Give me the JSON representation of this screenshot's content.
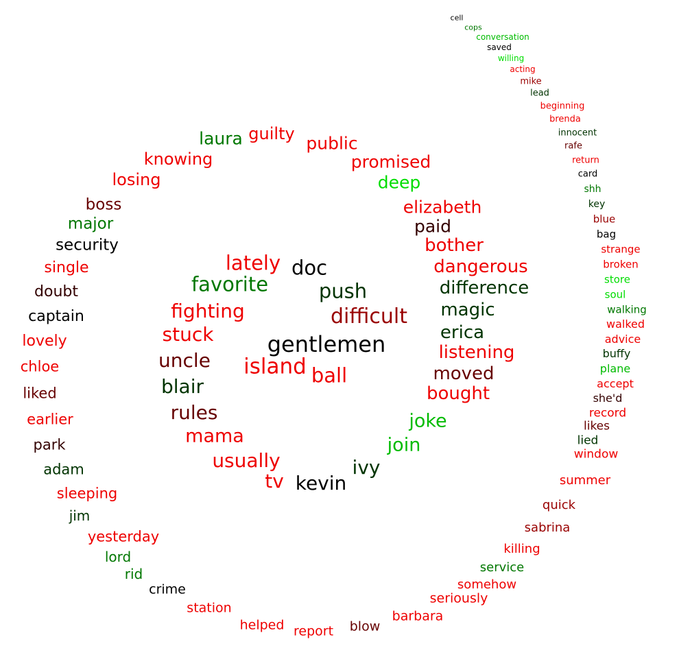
{
  "colors": {
    "black": "#000000",
    "dark_green": "#003300",
    "green": "#007700",
    "bright_green": "#00bb00",
    "lime": "#00dd00",
    "red": "#ee0000",
    "dark_red": "#990000",
    "maroon": "#660000",
    "brown": "#330000"
  },
  "words": [
    {
      "text": "gentlemen",
      "color": "black"
    },
    {
      "text": "doc",
      "color": "black"
    },
    {
      "text": "push",
      "color": "dark_green"
    },
    {
      "text": "difficult",
      "color": "dark_red"
    },
    {
      "text": "ball",
      "color": "red"
    },
    {
      "text": "island",
      "color": "red"
    },
    {
      "text": "lately",
      "color": "red"
    },
    {
      "text": "favorite",
      "color": "green"
    },
    {
      "text": "fighting",
      "color": "red"
    },
    {
      "text": "stuck",
      "color": "red"
    },
    {
      "text": "uncle",
      "color": "maroon"
    },
    {
      "text": "blair",
      "color": "dark_green"
    },
    {
      "text": "rules",
      "color": "maroon"
    },
    {
      "text": "mama",
      "color": "red"
    },
    {
      "text": "usually",
      "color": "red"
    },
    {
      "text": "tv",
      "color": "red"
    },
    {
      "text": "kevin",
      "color": "black"
    },
    {
      "text": "ivy",
      "color": "dark_green"
    },
    {
      "text": "join",
      "color": "bright_green"
    },
    {
      "text": "joke",
      "color": "bright_green"
    },
    {
      "text": "bought",
      "color": "red"
    },
    {
      "text": "moved",
      "color": "maroon"
    },
    {
      "text": "listening",
      "color": "red"
    },
    {
      "text": "erica",
      "color": "dark_green"
    },
    {
      "text": "magic",
      "color": "dark_green"
    },
    {
      "text": "difference",
      "color": "dark_green"
    },
    {
      "text": "dangerous",
      "color": "red"
    },
    {
      "text": "bother",
      "color": "red"
    },
    {
      "text": "paid",
      "color": "brown"
    },
    {
      "text": "elizabeth",
      "color": "red"
    },
    {
      "text": "deep",
      "color": "lime"
    },
    {
      "text": "promised",
      "color": "red"
    },
    {
      "text": "public",
      "color": "red"
    },
    {
      "text": "guilty",
      "color": "red"
    },
    {
      "text": "laura",
      "color": "green"
    },
    {
      "text": "knowing",
      "color": "red"
    },
    {
      "text": "losing",
      "color": "red"
    },
    {
      "text": "boss",
      "color": "maroon"
    },
    {
      "text": "major",
      "color": "green"
    },
    {
      "text": "security",
      "color": "black"
    },
    {
      "text": "single",
      "color": "red"
    },
    {
      "text": "doubt",
      "color": "brown"
    },
    {
      "text": "captain",
      "color": "black"
    },
    {
      "text": "lovely",
      "color": "red"
    },
    {
      "text": "chloe",
      "color": "red"
    },
    {
      "text": "liked",
      "color": "maroon"
    },
    {
      "text": "earlier",
      "color": "red"
    },
    {
      "text": "park",
      "color": "brown"
    },
    {
      "text": "adam",
      "color": "dark_green"
    },
    {
      "text": "sleeping",
      "color": "red"
    },
    {
      "text": "jim",
      "color": "dark_green"
    },
    {
      "text": "yesterday",
      "color": "red"
    },
    {
      "text": "lord",
      "color": "green"
    },
    {
      "text": "rid",
      "color": "green"
    },
    {
      "text": "crime",
      "color": "black"
    },
    {
      "text": "station",
      "color": "red"
    },
    {
      "text": "helped",
      "color": "red"
    },
    {
      "text": "report",
      "color": "red"
    },
    {
      "text": "blow",
      "color": "maroon"
    },
    {
      "text": "barbara",
      "color": "red"
    },
    {
      "text": "seriously",
      "color": "red"
    },
    {
      "text": "somehow",
      "color": "red"
    },
    {
      "text": "service",
      "color": "green"
    },
    {
      "text": "killing",
      "color": "red"
    },
    {
      "text": "sabrina",
      "color": "dark_red"
    },
    {
      "text": "quick",
      "color": "dark_red"
    },
    {
      "text": "summer",
      "color": "red"
    },
    {
      "text": "window",
      "color": "red"
    },
    {
      "text": "lied",
      "color": "dark_green"
    },
    {
      "text": "likes",
      "color": "maroon"
    },
    {
      "text": "record",
      "color": "red"
    },
    {
      "text": "she'd",
      "color": "brown"
    },
    {
      "text": "accept",
      "color": "red"
    },
    {
      "text": "plane",
      "color": "bright_green"
    },
    {
      "text": "buffy",
      "color": "dark_green"
    },
    {
      "text": "advice",
      "color": "red"
    },
    {
      "text": "walked",
      "color": "red"
    },
    {
      "text": "walking",
      "color": "green"
    },
    {
      "text": "soul",
      "color": "lime"
    },
    {
      "text": "store",
      "color": "lime"
    },
    {
      "text": "broken",
      "color": "red"
    },
    {
      "text": "strange",
      "color": "red"
    },
    {
      "text": "bag",
      "color": "black"
    },
    {
      "text": "blue",
      "color": "dark_red"
    },
    {
      "text": "key",
      "color": "dark_green"
    },
    {
      "text": "shh",
      "color": "green"
    },
    {
      "text": "card",
      "color": "black"
    },
    {
      "text": "return",
      "color": "red"
    },
    {
      "text": "rafe",
      "color": "maroon"
    },
    {
      "text": "innocent",
      "color": "dark_green"
    },
    {
      "text": "brenda",
      "color": "red"
    },
    {
      "text": "beginning",
      "color": "red"
    },
    {
      "text": "lead",
      "color": "dark_green"
    },
    {
      "text": "mike",
      "color": "dark_red"
    },
    {
      "text": "acting",
      "color": "red"
    },
    {
      "text": "willing",
      "color": "lime"
    },
    {
      "text": "saved",
      "color": "black"
    },
    {
      "text": "conversation",
      "color": "bright_green"
    },
    {
      "text": "cops",
      "color": "green"
    },
    {
      "text": "cell",
      "color": "black"
    }
  ]
}
